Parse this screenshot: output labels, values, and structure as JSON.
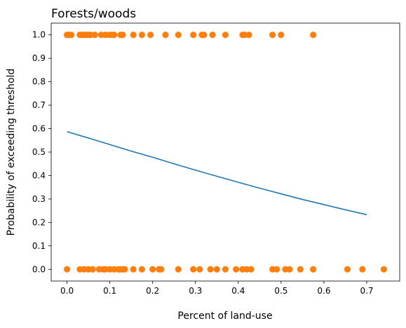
{
  "chart_data": {
    "type": "scatter",
    "title": "Forests/woods",
    "xlabel": "Percent of land-use",
    "ylabel": "Probability of exceeding threshold",
    "xlim": [
      -0.037,
      0.777
    ],
    "ylim": [
      -0.05,
      1.05
    ],
    "xticks": [
      "0.0",
      "0.1",
      "0.2",
      "0.3",
      "0.4",
      "0.5",
      "0.6",
      "0.7"
    ],
    "yticks": [
      "0.0",
      "0.1",
      "0.2",
      "0.3",
      "0.4",
      "0.5",
      "0.6",
      "0.7",
      "0.8",
      "0.9",
      "1.0"
    ],
    "grid": false,
    "series": [
      {
        "kind": "scatter",
        "color": "#ff7f0e",
        "points": [
          [
            0.0,
            1
          ],
          [
            0.005,
            1
          ],
          [
            0.01,
            1
          ],
          [
            0.03,
            1
          ],
          [
            0.035,
            1
          ],
          [
            0.04,
            1
          ],
          [
            0.045,
            1
          ],
          [
            0.05,
            1
          ],
          [
            0.055,
            1
          ],
          [
            0.065,
            1
          ],
          [
            0.08,
            1
          ],
          [
            0.09,
            1
          ],
          [
            0.1,
            1
          ],
          [
            0.105,
            1
          ],
          [
            0.11,
            1
          ],
          [
            0.125,
            1
          ],
          [
            0.13,
            1
          ],
          [
            0.155,
            1
          ],
          [
            0.175,
            1
          ],
          [
            0.195,
            1
          ],
          [
            0.23,
            1
          ],
          [
            0.26,
            1
          ],
          [
            0.295,
            1
          ],
          [
            0.315,
            1
          ],
          [
            0.32,
            1
          ],
          [
            0.34,
            1
          ],
          [
            0.37,
            1
          ],
          [
            0.41,
            1
          ],
          [
            0.415,
            1
          ],
          [
            0.425,
            1
          ],
          [
            0.48,
            1
          ],
          [
            0.5,
            1
          ],
          [
            0.575,
            1
          ],
          [
            0.0,
            0
          ],
          [
            0.03,
            0
          ],
          [
            0.04,
            0
          ],
          [
            0.05,
            0
          ],
          [
            0.06,
            0
          ],
          [
            0.075,
            0
          ],
          [
            0.085,
            0
          ],
          [
            0.09,
            0
          ],
          [
            0.1,
            0
          ],
          [
            0.11,
            0
          ],
          [
            0.12,
            0
          ],
          [
            0.125,
            0
          ],
          [
            0.13,
            0
          ],
          [
            0.135,
            0
          ],
          [
            0.155,
            0
          ],
          [
            0.175,
            0
          ],
          [
            0.2,
            0
          ],
          [
            0.215,
            0
          ],
          [
            0.22,
            0
          ],
          [
            0.26,
            0
          ],
          [
            0.295,
            0
          ],
          [
            0.31,
            0
          ],
          [
            0.335,
            0
          ],
          [
            0.35,
            0
          ],
          [
            0.37,
            0
          ],
          [
            0.395,
            0
          ],
          [
            0.41,
            0
          ],
          [
            0.42,
            0
          ],
          [
            0.43,
            0
          ],
          [
            0.48,
            0
          ],
          [
            0.49,
            0
          ],
          [
            0.51,
            0
          ],
          [
            0.52,
            0
          ],
          [
            0.545,
            0
          ],
          [
            0.575,
            0
          ],
          [
            0.655,
            0
          ],
          [
            0.69,
            0
          ],
          [
            0.74,
            0
          ]
        ]
      },
      {
        "kind": "line",
        "color": "#1f77b4",
        "x": [
          0.0,
          0.05,
          0.1,
          0.15,
          0.2,
          0.25,
          0.3,
          0.35,
          0.4,
          0.45,
          0.5,
          0.55,
          0.6,
          0.65,
          0.7
        ],
        "y": [
          0.587,
          0.56,
          0.532,
          0.504,
          0.478,
          0.45,
          0.423,
          0.397,
          0.371,
          0.346,
          0.322,
          0.298,
          0.276,
          0.254,
          0.233
        ]
      }
    ]
  }
}
